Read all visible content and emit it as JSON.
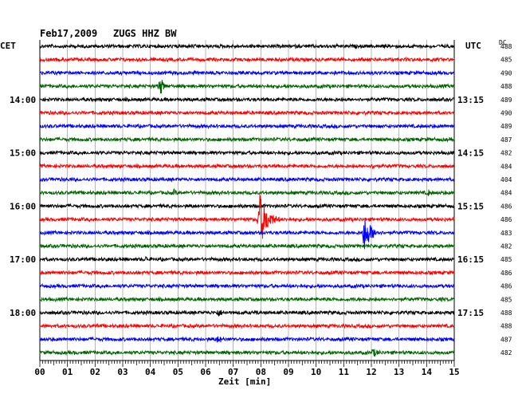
{
  "header": {
    "date": "Feb17,2009",
    "station": "ZUGS HHZ BW",
    "left_zone": "CET",
    "right_zone": "UTC",
    "dc_label": "DC"
  },
  "colors": {
    "black": "#000000",
    "red": "#ff0000",
    "blue": "#0000ff",
    "green": "#006400",
    "grid": "#888888"
  },
  "chart_data": {
    "type": "line",
    "xlabel": "Zeit [min]",
    "xlim": [
      0,
      15
    ],
    "x_ticks": [
      "00",
      "01",
      "02",
      "03",
      "04",
      "05",
      "06",
      "07",
      "08",
      "09",
      "10",
      "11",
      "12",
      "13",
      "14",
      "15"
    ],
    "trace_colors": [
      "black",
      "red",
      "blue",
      "green"
    ],
    "left_time_labels": [
      {
        "trace": 4,
        "label": "14:00"
      },
      {
        "trace": 8,
        "label": "15:00"
      },
      {
        "trace": 12,
        "label": "16:00"
      },
      {
        "trace": 16,
        "label": "17:00"
      },
      {
        "trace": 20,
        "label": "18:00"
      }
    ],
    "right_time_labels": [
      {
        "trace": 4,
        "label": "13:15"
      },
      {
        "trace": 8,
        "label": "14:15"
      },
      {
        "trace": 12,
        "label": "15:15"
      },
      {
        "trace": 16,
        "label": "16:15"
      },
      {
        "trace": 20,
        "label": "17:15"
      }
    ],
    "dc_values": [
      "488",
      "485",
      "490",
      "488",
      "489",
      "490",
      "489",
      "487",
      "482",
      "484",
      "404",
      "484",
      "486",
      "486",
      "483",
      "482",
      "485",
      "486",
      "486",
      "485",
      "488",
      "488",
      "487",
      "482"
    ],
    "events": [
      {
        "trace": 3,
        "minute": 4.3,
        "amp": 14,
        "dur": 0.4
      },
      {
        "trace": 13,
        "minute": 7.9,
        "amp": 36,
        "dur": 0.8
      },
      {
        "trace": 14,
        "minute": 11.7,
        "amp": 24,
        "dur": 0.7
      },
      {
        "trace": 9,
        "minute": 12.0,
        "amp": 4,
        "dur": 0.8
      },
      {
        "trace": 11,
        "minute": 4.8,
        "amp": 5,
        "dur": 0.5
      },
      {
        "trace": 11,
        "minute": 14.0,
        "amp": 5,
        "dur": 0.4
      },
      {
        "trace": 16,
        "minute": 3.8,
        "amp": 5,
        "dur": 0.3
      },
      {
        "trace": 20,
        "minute": 6.4,
        "amp": 6,
        "dur": 0.6
      },
      {
        "trace": 20,
        "minute": 7.8,
        "amp": 4,
        "dur": 0.3
      },
      {
        "trace": 22,
        "minute": 6.4,
        "amp": 6,
        "dur": 0.6
      },
      {
        "trace": 23,
        "minute": 12.0,
        "amp": 6,
        "dur": 0.9
      },
      {
        "trace": 23,
        "minute": 1.2,
        "amp": 3,
        "dur": 0.3
      },
      {
        "trace": 19,
        "minute": 11.3,
        "amp": 3,
        "dur": 0.3
      },
      {
        "trace": 19,
        "minute": 14.5,
        "amp": 3,
        "dur": 0.4
      }
    ]
  }
}
